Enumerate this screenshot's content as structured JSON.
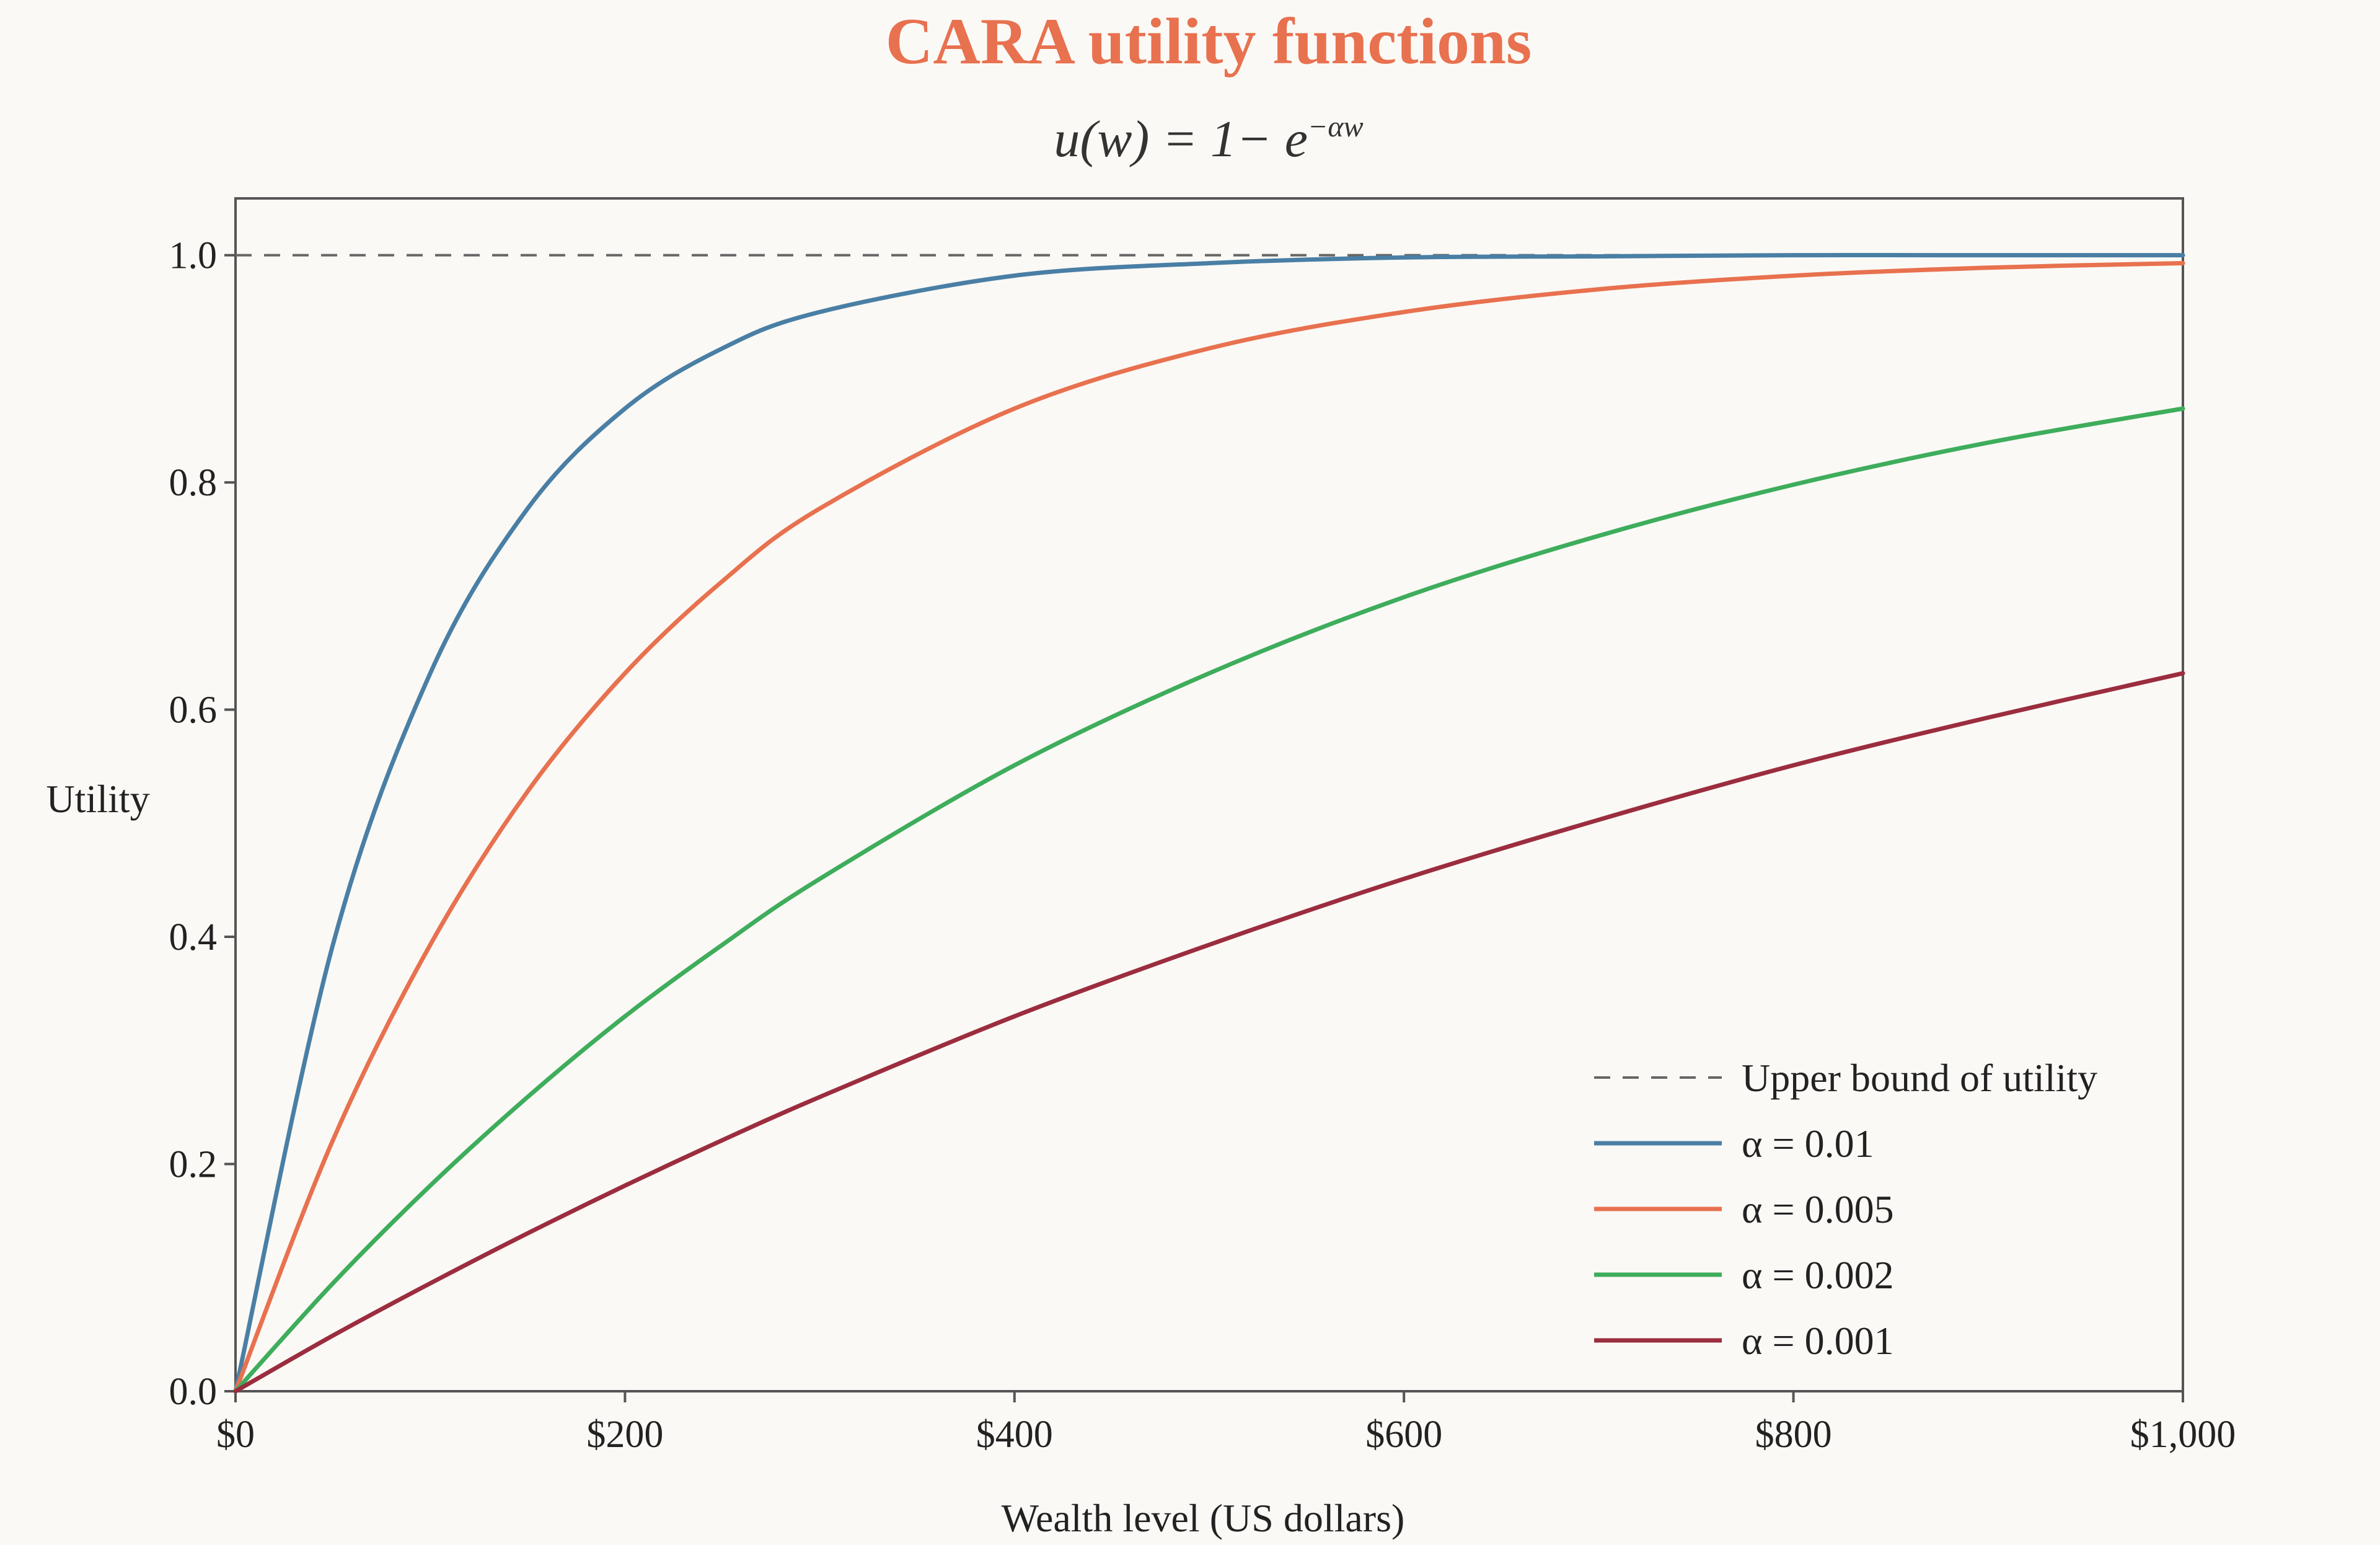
{
  "chart_data": {
    "type": "line",
    "title": "CARA utility functions",
    "subtitle": "u(w) = 1− e",
    "subtitle_sup": "−αw",
    "xlabel": "Wealth level (US dollars)",
    "ylabel": "Utility",
    "xlim": [
      0,
      1000
    ],
    "ylim": [
      0,
      1.05
    ],
    "xticks": [
      0,
      200,
      400,
      600,
      800,
      1000
    ],
    "xtick_labels": [
      "$0",
      "$200",
      "$400",
      "$600",
      "$800",
      "$1,000"
    ],
    "yticks": [
      0.0,
      0.2,
      0.4,
      0.6,
      0.8,
      1.0
    ],
    "ytick_labels": [
      "0.0",
      "0.2",
      "0.4",
      "0.6",
      "0.8",
      "1.0"
    ],
    "grid": false,
    "legend_position": "bottom-right",
    "reference_line": {
      "name": "Upper bound of utility",
      "y": 1.0,
      "color": "#666666",
      "style": "dashed"
    },
    "x": [
      0,
      50,
      100,
      150,
      200,
      250,
      300,
      400,
      500,
      600,
      700,
      800,
      900,
      1000
    ],
    "series": [
      {
        "name": "α = 0.01",
        "color": "#4a7fa5",
        "values": [
          0.0,
          0.393,
          0.632,
          0.777,
          0.865,
          0.918,
          0.95,
          0.982,
          0.993,
          0.998,
          0.999,
          1.0,
          1.0,
          1.0
        ]
      },
      {
        "name": "α = 0.005",
        "color": "#e8714f",
        "values": [
          0.0,
          0.221,
          0.393,
          0.528,
          0.632,
          0.713,
          0.777,
          0.865,
          0.918,
          0.95,
          0.97,
          0.982,
          0.989,
          0.993
        ]
      },
      {
        "name": "α = 0.002",
        "color": "#3ead5c",
        "values": [
          0.0,
          0.095,
          0.181,
          0.259,
          0.33,
          0.393,
          0.451,
          0.551,
          0.632,
          0.699,
          0.753,
          0.798,
          0.835,
          0.865
        ]
      },
      {
        "name": "α = 0.001",
        "color": "#9b2d3f",
        "values": [
          0.0,
          0.049,
          0.095,
          0.139,
          0.181,
          0.221,
          0.259,
          0.33,
          0.393,
          0.451,
          0.503,
          0.551,
          0.593,
          0.632
        ]
      }
    ]
  }
}
